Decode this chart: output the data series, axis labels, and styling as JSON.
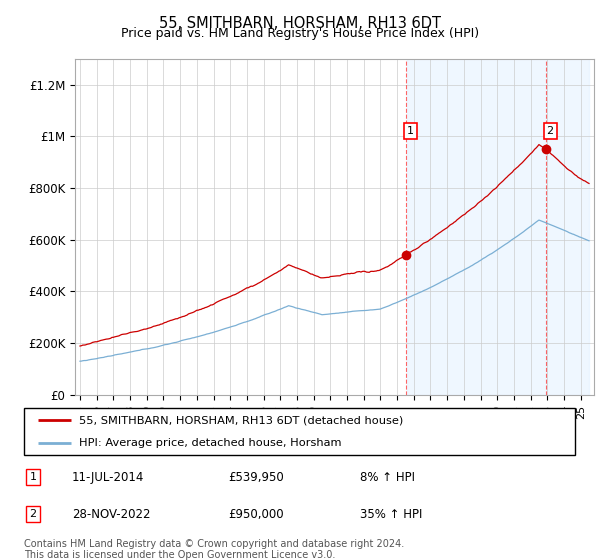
{
  "title": "55, SMITHBARN, HORSHAM, RH13 6DT",
  "subtitle": "Price paid vs. HM Land Registry's House Price Index (HPI)",
  "ylabel_ticks": [
    "£0",
    "£200K",
    "£400K",
    "£600K",
    "£800K",
    "£1M",
    "£1.2M"
  ],
  "ytick_values": [
    0,
    200000,
    400000,
    600000,
    800000,
    1000000,
    1200000
  ],
  "ylim": [
    0,
    1300000
  ],
  "xlim_start": 1994.7,
  "xlim_end": 2025.8,
  "line_color_red": "#cc0000",
  "line_color_blue": "#7bafd4",
  "fill_color": "#ddeeff",
  "fill_alpha": 0.45,
  "grid_color": "#cccccc",
  "bg_color": "#ffffff",
  "sale1_x": 2014.53,
  "sale1_y": 539950,
  "sale2_x": 2022.91,
  "sale2_y": 950000,
  "legend_line1": "55, SMITHBARN, HORSHAM, RH13 6DT (detached house)",
  "legend_line2": "HPI: Average price, detached house, Horsham",
  "annotation1_date": "11-JUL-2014",
  "annotation1_price": "£539,950",
  "annotation1_hpi": "8% ↑ HPI",
  "annotation2_date": "28-NOV-2022",
  "annotation2_price": "£950,000",
  "annotation2_hpi": "35% ↑ HPI",
  "footer": "Contains HM Land Registry data © Crown copyright and database right 2024.\nThis data is licensed under the Open Government Licence v3.0."
}
